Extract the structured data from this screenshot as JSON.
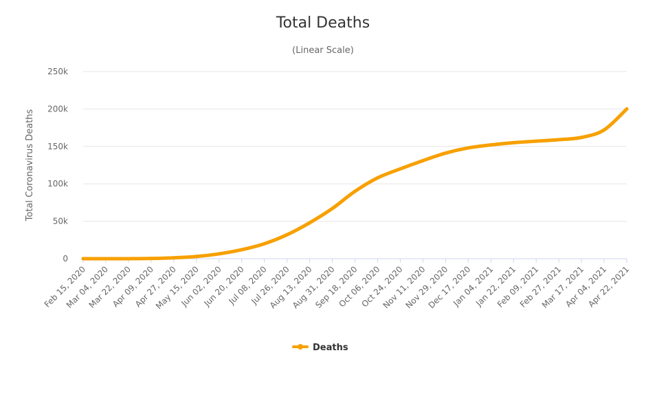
{
  "chart_data": {
    "type": "line",
    "title": "Total Deaths",
    "subtitle": "(Linear Scale)",
    "ylabel": "Total Coronavirus Deaths",
    "xlabel": "",
    "ylim": [
      0,
      250000
    ],
    "yticks": [
      0,
      50000,
      100000,
      150000,
      200000,
      250000
    ],
    "ytick_labels": [
      "0",
      "50k",
      "100k",
      "150k",
      "200k",
      "250k"
    ],
    "categories": [
      "Feb 15, 2020",
      "Mar 04, 2020",
      "Mar 22, 2020",
      "Apr 09, 2020",
      "Apr 27, 2020",
      "May 15, 2020",
      "Jun 02, 2020",
      "Jun 20, 2020",
      "Jul 08, 2020",
      "Jul 26, 2020",
      "Aug 13, 2020",
      "Aug 31, 2020",
      "Sep 18, 2020",
      "Oct 06, 2020",
      "Oct 24, 2020",
      "Nov 11, 2020",
      "Nov 29, 2020",
      "Dec 17, 2020",
      "Jan 04, 2021",
      "Jan 22, 2021",
      "Feb 09, 2021",
      "Feb 27, 2021",
      "Mar 17, 2021",
      "Apr 04, 2021",
      "Apr 22, 2021"
    ],
    "series": [
      {
        "name": "Deaths",
        "color": "#f7a000",
        "values": [
          0,
          0,
          50,
          300,
          1200,
          3000,
          6500,
          12000,
          20000,
          32000,
          48000,
          67000,
          90000,
          108000,
          120000,
          131000,
          141000,
          148000,
          152000,
          155000,
          157000,
          159000,
          162000,
          172000,
          200000
        ]
      }
    ],
    "legend": "bottom-center",
    "grid": true
  }
}
